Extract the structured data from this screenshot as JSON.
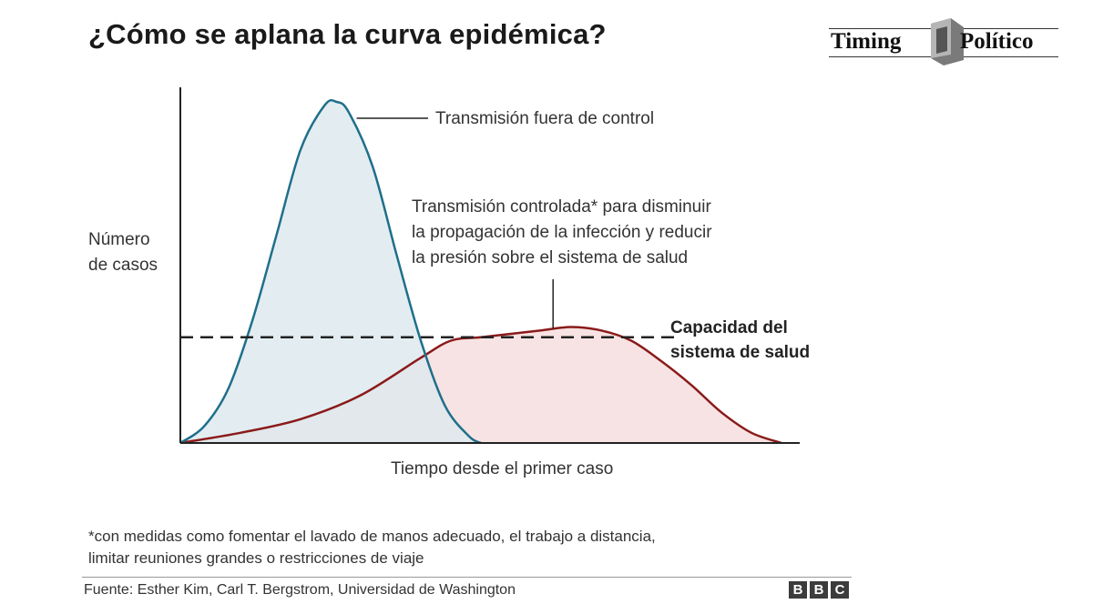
{
  "title": "¿Cómo se aplana la curva epidémica?",
  "logo": {
    "word1": "Timing",
    "word2": "Político"
  },
  "chart_data": {
    "type": "area",
    "title": "¿Cómo se aplana la curva epidémica?",
    "ylabel": [
      "Número",
      "de casos"
    ],
    "xlabel": "Tiempo desde el primer caso",
    "xlim": [
      0,
      100
    ],
    "ylim": [
      0,
      100
    ],
    "series": [
      {
        "name": "Transmisión fuera de control",
        "color": "#1f6f8b",
        "fill": "#dde9ee",
        "x": [
          0,
          4,
          8,
          12,
          16,
          20,
          24,
          26,
          28,
          32,
          36,
          40,
          44,
          48,
          50
        ],
        "values": [
          0,
          5,
          16,
          36,
          61,
          86,
          99,
          100,
          97,
          81,
          55,
          30,
          11,
          2,
          0
        ]
      },
      {
        "name": "Transmisión controlada* para disminuir la propagación de la infección y reducir la presión sobre el sistema de salud",
        "color": "#8b1a1a",
        "fill": "#f7e3e3",
        "x": [
          0,
          10,
          20,
          30,
          40,
          45,
          50,
          55,
          60,
          65,
          70,
          75,
          80,
          85,
          90,
          95,
          100
        ],
        "values": [
          0,
          3,
          7,
          14,
          25,
          30,
          31,
          32,
          33,
          34,
          33,
          30,
          24,
          17,
          9,
          3,
          0
        ]
      }
    ],
    "reference_line": {
      "label": "Capacidad del sistema de salud",
      "value": 31,
      "style": "dashed"
    },
    "annotations": [
      "Transmisión fuera de control",
      "Transmisión controlada* para disminuir la propagación de la infección y reducir la presión sobre el sistema de salud"
    ]
  },
  "annotations": {
    "uncontrolled": "Transmisión fuera de control",
    "controlled_l1": "Transmisión controlada* para disminuir",
    "controlled_l2": "la propagación de la infección y reducir",
    "controlled_l3": "la presión sobre el sistema de salud",
    "capacity_l1": "Capacidad del",
    "capacity_l2": "sistema de salud"
  },
  "footnote": {
    "l1": "*con medidas como fomentar el lavado de manos adecuado, el trabajo a distancia,",
    "l2": "limitar reuniones grandes o restricciones de viaje"
  },
  "source": "Fuente: Esther Kim, Carl T. Bergstrom, Universidad de Washington",
  "bbc": [
    "B",
    "B",
    "C"
  ]
}
